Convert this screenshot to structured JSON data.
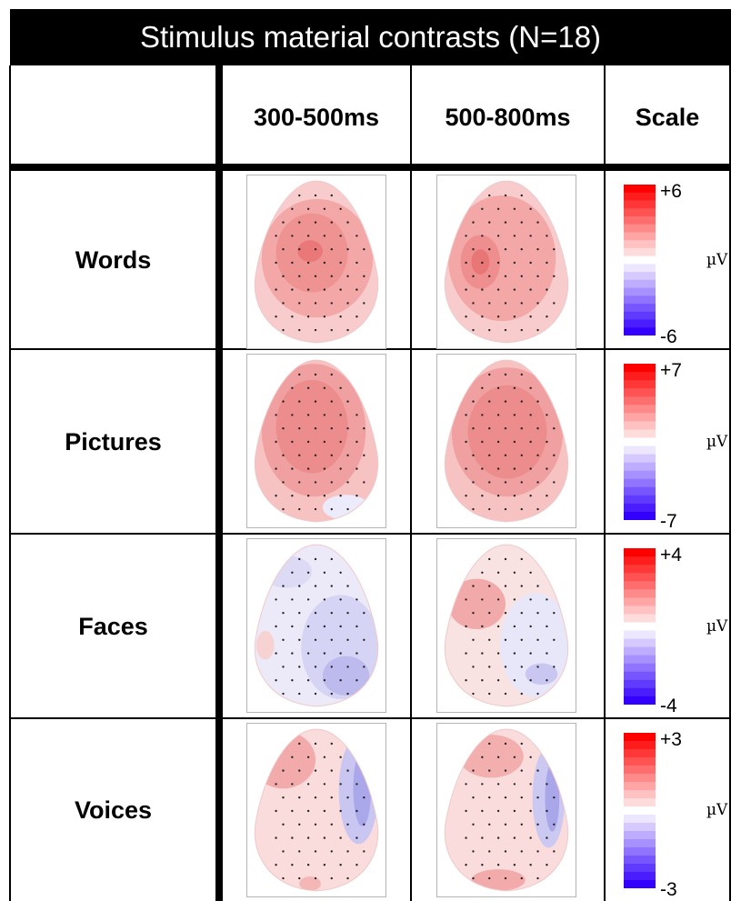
{
  "title": "Stimulus material contrasts (N=18)",
  "headers": {
    "corner": "",
    "col1": "300-500ms",
    "col2": "500-800ms",
    "col3": "Scale"
  },
  "rows": [
    {
      "label": "Words",
      "scale_max": "+6",
      "scale_min": "-6",
      "unit": "µV"
    },
    {
      "label": "Pictures",
      "scale_max": "+7",
      "scale_min": "-7",
      "unit": "µV"
    },
    {
      "label": "Faces",
      "scale_max": "+4",
      "scale_min": "-4",
      "unit": "µV"
    },
    {
      "label": "Voices",
      "scale_max": "+3",
      "scale_min": "-3",
      "unit": "µV"
    }
  ],
  "colors": {
    "positive": "#ff0000",
    "negative": "#3300ff",
    "neutral": "#ffffff"
  },
  "scale_steps_per_side": 9
}
